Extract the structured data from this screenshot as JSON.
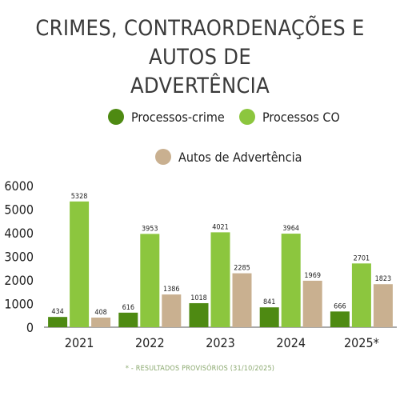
{
  "chart_data": {
    "type": "bar",
    "title_lines": [
      "CRIMES, CONTRAORDENAÇÕES E AUTOS DE",
      "ADVERTÊNCIA"
    ],
    "categories": [
      "2021",
      "2022",
      "2023",
      "2024",
      "2025*"
    ],
    "series": [
      {
        "name": "Processos-crime",
        "color": "#4e8a12",
        "values": [
          434,
          616,
          1018,
          841,
          666
        ]
      },
      {
        "name": "Processos CO",
        "color": "#8cc63e",
        "values": [
          5328,
          3953,
          4021,
          3964,
          2701
        ]
      },
      {
        "name": "Autos de Advertência",
        "color": "#c9b090",
        "values": [
          408,
          1386,
          2285,
          1969,
          1823
        ]
      }
    ],
    "ylim": [
      0,
      6000
    ],
    "yticks": [
      0,
      1000,
      2000,
      3000,
      4000,
      5000,
      6000
    ],
    "legend_position": "top",
    "grid": false,
    "footnote": "* - RESULTADOS PROVISÓRIOS (31/10/2025)"
  }
}
